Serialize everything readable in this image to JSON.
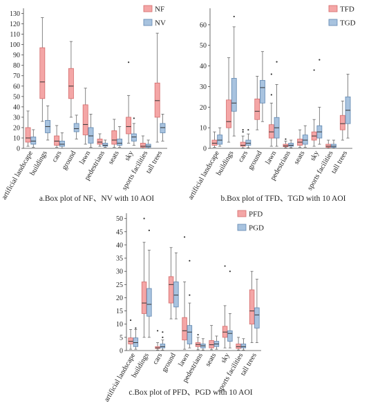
{
  "colors": {
    "series1": "#f4a6a6",
    "series1_edge": "#d46a6a",
    "series2": "#a8c3df",
    "series2_edge": "#5f86b0"
  },
  "chart_data": [
    {
      "type": "boxplot",
      "caption": "a.Box plot of NF、NV with 10 AOI",
      "categories": [
        "artificial landscape",
        "buildings",
        "cars",
        "ground",
        "lawn",
        "pedestrians",
        "seats",
        "sky",
        "sports facilities",
        "tall trees"
      ],
      "ylim": [
        0,
        135
      ],
      "yticks": [
        "0",
        "10",
        "20",
        "30",
        "40",
        "50",
        "60",
        "70",
        "80",
        "90",
        "100",
        "110",
        "120",
        "130"
      ],
      "legend_position": "top-right",
      "series": [
        {
          "name": "NF",
          "boxes": [
            {
              "min": 2,
              "q1": 6,
              "median": 10,
              "q3": 20,
              "max": 36,
              "outliers": []
            },
            {
              "min": 26,
              "q1": 48,
              "median": 64,
              "q3": 97,
              "max": 126,
              "outliers": []
            },
            {
              "min": 1,
              "q1": 3,
              "median": 7,
              "q3": 12,
              "max": 22,
              "outliers": []
            },
            {
              "min": 30,
              "q1": 48,
              "median": 60,
              "q3": 77,
              "max": 103,
              "outliers": []
            },
            {
              "min": 4,
              "q1": 13,
              "median": 23,
              "q3": 42,
              "max": 58,
              "outliers": []
            },
            {
              "min": 2,
              "q1": 4,
              "median": 6,
              "q3": 9,
              "max": 14,
              "outliers": []
            },
            {
              "min": 1,
              "q1": 4,
              "median": 8,
              "q3": 17,
              "max": 28,
              "outliers": []
            },
            {
              "min": 5,
              "q1": 14,
              "median": 21,
              "q3": 30,
              "max": 51,
              "outliers": [
                83
              ]
            },
            {
              "min": 0,
              "q1": 1,
              "median": 2,
              "q3": 5,
              "max": 12,
              "outliers": []
            },
            {
              "min": 6,
              "q1": 30,
              "median": 46,
              "q3": 63,
              "max": 111,
              "outliers": []
            }
          ]
        },
        {
          "name": "NV",
          "boxes": [
            {
              "min": 1,
              "q1": 4,
              "median": 7,
              "q3": 11,
              "max": 18,
              "outliers": []
            },
            {
              "min": 8,
              "q1": 15,
              "median": 21,
              "q3": 27,
              "max": 41,
              "outliers": []
            },
            {
              "min": 0,
              "q1": 2,
              "median": 4,
              "q3": 7,
              "max": 15,
              "outliers": []
            },
            {
              "min": 9,
              "q1": 16,
              "median": 19,
              "q3": 24,
              "max": 32,
              "outliers": []
            },
            {
              "min": 1,
              "q1": 5,
              "median": 12,
              "q3": 20,
              "max": 33,
              "outliers": []
            },
            {
              "min": 1,
              "q1": 2,
              "median": 3,
              "q3": 5,
              "max": 8,
              "outliers": []
            },
            {
              "min": 1,
              "q1": 3,
              "median": 5,
              "q3": 9,
              "max": 21,
              "outliers": []
            },
            {
              "min": 3,
              "q1": 7,
              "median": 11,
              "q3": 14,
              "max": 24,
              "outliers": [
                29
              ]
            },
            {
              "min": 0,
              "q1": 1,
              "median": 2,
              "q3": 4,
              "max": 8,
              "outliers": []
            },
            {
              "min": 7,
              "q1": 15,
              "median": 20,
              "q3": 24,
              "max": 33,
              "outliers": []
            }
          ]
        }
      ]
    },
    {
      "type": "boxplot",
      "caption": "b.Box plot of TFD、TGD with 10 AOI",
      "categories": [
        "artificial landscape",
        "buildings",
        "cars",
        "ground",
        "lawn",
        "pedestrians",
        "seats",
        "sky",
        "sports facilities",
        "tall trees"
      ],
      "ylim": [
        0,
        68
      ],
      "yticks": [
        "0",
        "10",
        "20",
        "30",
        "40",
        "50",
        "60"
      ],
      "legend_position": "top-right",
      "series": [
        {
          "name": "TFD",
          "boxes": [
            {
              "min": 0.5,
              "q1": 1.5,
              "median": 2.5,
              "q3": 4,
              "max": 8,
              "outliers": []
            },
            {
              "min": 3,
              "q1": 10,
              "median": 13,
              "q3": 23.5,
              "max": 44,
              "outliers": []
            },
            {
              "min": 0.2,
              "q1": 1,
              "median": 1.5,
              "q3": 3,
              "max": 6,
              "outliers": [
                8,
                9
              ]
            },
            {
              "min": 9,
              "q1": 14,
              "median": 18,
              "q3": 24,
              "max": 35,
              "outliers": []
            },
            {
              "min": 1,
              "q1": 5,
              "median": 8,
              "q3": 11.5,
              "max": 22,
              "outliers": [
                26,
                36
              ]
            },
            {
              "min": 0.3,
              "q1": 0.8,
              "median": 1.2,
              "q3": 2,
              "max": 3.5,
              "outliers": [
                4.5
              ]
            },
            {
              "min": 0.5,
              "q1": 1.5,
              "median": 3,
              "q3": 4.5,
              "max": 9,
              "outliers": []
            },
            {
              "min": 1,
              "q1": 4,
              "median": 6,
              "q3": 8,
              "max": 14,
              "outliers": [
                38
              ]
            },
            {
              "min": 0.1,
              "q1": 0.5,
              "median": 1,
              "q3": 2,
              "max": 4,
              "outliers": []
            },
            {
              "min": 4,
              "q1": 9,
              "median": 12,
              "q3": 16,
              "max": 23,
              "outliers": []
            }
          ]
        },
        {
          "name": "TGD",
          "boxes": [
            {
              "min": 1,
              "q1": 2,
              "median": 4,
              "q3": 6.5,
              "max": 10,
              "outliers": []
            },
            {
              "min": 6,
              "q1": 18,
              "median": 22,
              "q3": 34,
              "max": 59,
              "outliers": [
                64
              ]
            },
            {
              "min": 0.3,
              "q1": 1.5,
              "median": 2.5,
              "q3": 4,
              "max": 7,
              "outliers": [
                9
              ]
            },
            {
              "min": 13,
              "q1": 22,
              "median": 29.5,
              "q3": 33,
              "max": 47,
              "outliers": []
            },
            {
              "min": 1,
              "q1": 5,
              "median": 10,
              "q3": 15,
              "max": 31,
              "outliers": [
                42
              ]
            },
            {
              "min": 0.3,
              "q1": 1,
              "median": 1.5,
              "q3": 2.5,
              "max": 4,
              "outliers": []
            },
            {
              "min": 0.5,
              "q1": 2,
              "median": 4,
              "q3": 6.5,
              "max": 11,
              "outliers": []
            },
            {
              "min": 2,
              "q1": 5,
              "median": 8,
              "q3": 11,
              "max": 20,
              "outliers": [
                43
              ]
            },
            {
              "min": 0.1,
              "q1": 0.5,
              "median": 1,
              "q3": 2,
              "max": 4,
              "outliers": []
            },
            {
              "min": 5,
              "q1": 12,
              "median": 18.5,
              "q3": 25,
              "max": 36,
              "outliers": []
            }
          ]
        }
      ]
    },
    {
      "type": "boxplot",
      "caption": "c.Box plot of PFD、PGD with 10 AOI",
      "categories": [
        "artificial landscape",
        "buildings",
        "cars",
        "ground",
        "lawn",
        "pedestrians",
        "seats",
        "sky",
        "sports facilities",
        "tall trees"
      ],
      "ylim": [
        0,
        52
      ],
      "yticks": [
        "0",
        "5",
        "10",
        "15",
        "20",
        "25",
        "30",
        "35",
        "40",
        "45",
        "50"
      ],
      "legend_position": "top-right",
      "series": [
        {
          "name": "PFD",
          "boxes": [
            {
              "min": 0.5,
              "q1": 2.5,
              "median": 3.5,
              "q3": 4.8,
              "max": 8,
              "outliers": [
                11.5
              ]
            },
            {
              "min": 5,
              "q1": 14,
              "median": 18,
              "q3": 26,
              "max": 41,
              "outliers": [
                50
              ]
            },
            {
              "min": 0.2,
              "q1": 0.8,
              "median": 1,
              "q3": 1.5,
              "max": 3,
              "outliers": [
                7.5
              ]
            },
            {
              "min": 12,
              "q1": 18,
              "median": 25,
              "q3": 28,
              "max": 39,
              "outliers": []
            },
            {
              "min": 0.5,
              "q1": 4,
              "median": 7.5,
              "q3": 12.5,
              "max": 26,
              "outliers": [
                43
              ]
            },
            {
              "min": 0.3,
              "q1": 1.5,
              "median": 2.3,
              "q3": 3,
              "max": 5,
              "outliers": [
                6
              ]
            },
            {
              "min": 0.3,
              "q1": 1,
              "median": 2.2,
              "q3": 3.8,
              "max": 9.5,
              "outliers": []
            },
            {
              "min": 1,
              "q1": 5,
              "median": 7,
              "q3": 9.2,
              "max": 17,
              "outliers": [
                32
              ]
            },
            {
              "min": 0.2,
              "q1": 0.8,
              "median": 1.5,
              "q3": 2.5,
              "max": 5,
              "outliers": []
            },
            {
              "min": 3,
              "q1": 10,
              "median": 15,
              "q3": 23,
              "max": 30,
              "outliers": []
            }
          ]
        },
        {
          "name": "PGD",
          "boxes": [
            {
              "min": 0.5,
              "q1": 1.5,
              "median": 3,
              "q3": 4.8,
              "max": 8,
              "outliers": [
                8.5
              ]
            },
            {
              "min": 5,
              "q1": 13,
              "median": 17.5,
              "q3": 23.5,
              "max": 38,
              "outliers": [
                45.5
              ]
            },
            {
              "min": 0.2,
              "q1": 1,
              "median": 1.5,
              "q3": 2.5,
              "max": 4,
              "outliers": [
                5,
                7
              ]
            },
            {
              "min": 12,
              "q1": 16.5,
              "median": 21,
              "q3": 26,
              "max": 37,
              "outliers": []
            },
            {
              "min": 1,
              "q1": 2.5,
              "median": 7,
              "q3": 9.5,
              "max": 18,
              "outliers": [
                21,
                34
              ]
            },
            {
              "min": 0.2,
              "q1": 1,
              "median": 1.8,
              "q3": 2.5,
              "max": 4.5,
              "outliers": []
            },
            {
              "min": 0.5,
              "q1": 1.5,
              "median": 2.5,
              "q3": 3.5,
              "max": 5.5,
              "outliers": []
            },
            {
              "min": 1,
              "q1": 3.5,
              "median": 6.5,
              "q3": 7.5,
              "max": 14,
              "outliers": [
                30
              ]
            },
            {
              "min": 0.2,
              "q1": 1,
              "median": 1.5,
              "q3": 2.5,
              "max": 4.5,
              "outliers": []
            },
            {
              "min": 3,
              "q1": 8.5,
              "median": 13.5,
              "q3": 16.2,
              "max": 27,
              "outliers": []
            }
          ]
        }
      ]
    }
  ]
}
